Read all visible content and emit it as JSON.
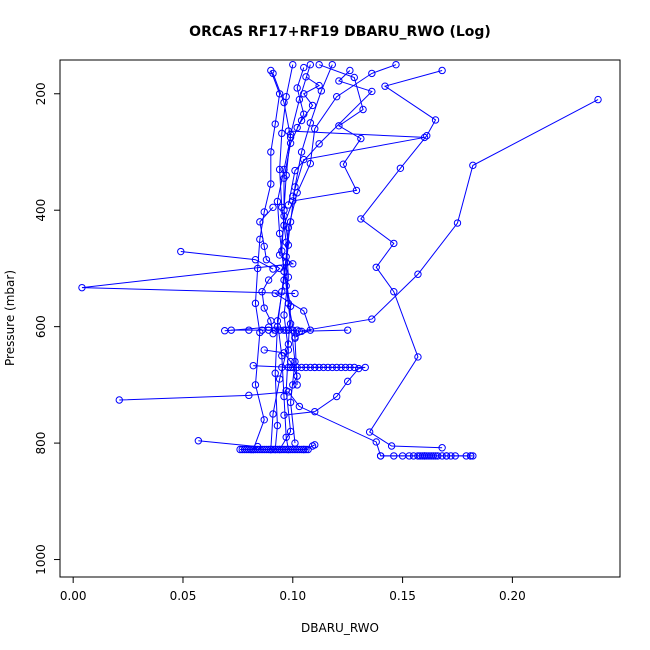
{
  "chart_data": {
    "type": "scatter",
    "title": "ORCAS RF17+RF19 DBARU_RWO (Log)",
    "xlabel": "DBARU_RWO",
    "ylabel": "Pressure (mbar)",
    "xlim": [
      -0.006,
      0.249
    ],
    "ylim": [
      1030,
      142
    ],
    "y_reversed": true,
    "x_ticks": [
      "0.00",
      "0.05",
      "0.10",
      "0.15",
      "0.20"
    ],
    "x_tick_values": [
      0.0,
      0.05,
      0.1,
      0.15,
      0.2
    ],
    "y_ticks": [
      "200",
      "400",
      "600",
      "800",
      "1000"
    ],
    "y_tick_values": [
      200,
      400,
      600,
      800,
      1000
    ],
    "grid": false,
    "series_color": "#0000ff",
    "series": [
      {
        "values": [
          [
            0.168,
            160
          ],
          [
            0.142,
            187
          ],
          [
            0.165,
            245
          ],
          [
            0.161,
            272
          ],
          [
            0.149,
            328
          ],
          [
            0.131,
            415
          ],
          [
            0.146,
            457
          ],
          [
            0.138,
            498
          ],
          [
            0.146,
            540
          ],
          [
            0.157,
            652
          ],
          [
            0.135,
            781
          ],
          [
            0.145,
            805
          ],
          [
            0.168,
            808
          ]
        ]
      },
      {
        "values": [
          [
            0.239,
            210
          ],
          [
            0.182,
            323
          ],
          [
            0.175,
            422
          ],
          [
            0.157,
            510
          ],
          [
            0.136,
            587
          ],
          [
            0.103,
            608
          ]
        ]
      },
      {
        "values": [
          [
            0.112,
            150
          ],
          [
            0.128,
            172
          ],
          [
            0.132,
            227
          ],
          [
            0.121,
            255
          ],
          [
            0.131,
            277
          ],
          [
            0.123,
            321
          ],
          [
            0.129,
            366
          ],
          [
            0.1,
            384
          ],
          [
            0.096,
            426
          ],
          [
            0.094,
            477
          ],
          [
            0.1,
            492
          ],
          [
            0.004,
            533
          ],
          [
            0.101,
            543
          ]
        ]
      },
      {
        "values": [
          [
            0.049,
            471
          ],
          [
            0.083,
            485
          ],
          [
            0.091,
            501
          ]
        ]
      },
      {
        "values": [
          [
            0.021,
            726
          ],
          [
            0.08,
            718
          ],
          [
            0.098,
            712
          ],
          [
            0.103,
            737
          ],
          [
            0.138,
            798
          ],
          [
            0.14,
            822
          ],
          [
            0.16,
            822
          ],
          [
            0.17,
            822
          ],
          [
            0.181,
            822
          ]
        ]
      },
      {
        "values": [
          [
            0.057,
            796
          ],
          [
            0.084,
            806
          ],
          [
            0.081,
            811
          ],
          [
            0.09,
            811
          ],
          [
            0.105,
            811
          ],
          [
            0.109,
            805
          ],
          [
            0.11,
            803
          ]
        ]
      },
      {
        "values": [
          [
            0.069,
            607
          ],
          [
            0.089,
            601
          ],
          [
            0.097,
            606
          ],
          [
            0.104,
            608
          ],
          [
            0.125,
            606
          ]
        ]
      },
      {
        "values": [
          [
            0.082,
            667
          ],
          [
            0.099,
            670
          ],
          [
            0.11,
            670
          ],
          [
            0.133,
            670
          ],
          [
            0.13,
            672
          ],
          [
            0.125,
            694
          ],
          [
            0.12,
            720
          ],
          [
            0.11,
            746
          ],
          [
            0.096,
            752
          ]
        ]
      },
      {
        "values": [
          [
            0.09,
            160
          ],
          [
            0.094,
            200
          ],
          [
            0.092,
            252
          ],
          [
            0.09,
            300
          ],
          [
            0.09,
            355
          ],
          [
            0.087,
            403
          ],
          [
            0.085,
            450
          ],
          [
            0.084,
            500
          ],
          [
            0.083,
            560
          ],
          [
            0.085,
            610
          ],
          [
            0.083,
            700
          ],
          [
            0.087,
            760
          ],
          [
            0.082,
            811
          ]
        ]
      },
      {
        "values": [
          [
            0.1,
            150
          ],
          [
            0.097,
            205
          ],
          [
            0.095,
            268
          ],
          [
            0.094,
            330
          ],
          [
            0.095,
            395
          ],
          [
            0.097,
            455
          ],
          [
            0.098,
            515
          ],
          [
            0.096,
            580
          ],
          [
            0.098,
            640
          ],
          [
            0.097,
            710
          ],
          [
            0.099,
            780
          ],
          [
            0.094,
            811
          ]
        ]
      },
      {
        "values": [
          [
            0.108,
            150
          ],
          [
            0.103,
            210
          ],
          [
            0.099,
            270
          ],
          [
            0.097,
            340
          ],
          [
            0.096,
            400
          ],
          [
            0.098,
            460
          ],
          [
            0.096,
            520
          ],
          [
            0.093,
            590
          ],
          [
            0.095,
            650
          ],
          [
            0.096,
            720
          ],
          [
            0.097,
            790
          ],
          [
            0.098,
            811
          ]
        ]
      },
      {
        "values": [
          [
            0.118,
            150
          ],
          [
            0.113,
            195
          ],
          [
            0.108,
            250
          ],
          [
            0.104,
            300
          ],
          [
            0.101,
            360
          ],
          [
            0.099,
            420
          ],
          [
            0.097,
            480
          ],
          [
            0.095,
            540
          ],
          [
            0.093,
            600
          ],
          [
            0.092,
            680
          ],
          [
            0.093,
            770
          ],
          [
            0.092,
            811
          ]
        ]
      },
      {
        "values": [
          [
            0.091,
            165
          ],
          [
            0.096,
            215
          ],
          [
            0.099,
            275
          ],
          [
            0.096,
            330
          ],
          [
            0.093,
            385
          ],
          [
            0.094,
            440
          ],
          [
            0.096,
            505
          ],
          [
            0.099,
            565
          ],
          [
            0.098,
            630
          ],
          [
            0.094,
            690
          ],
          [
            0.091,
            750
          ],
          [
            0.09,
            811
          ]
        ]
      },
      {
        "values": [
          [
            0.105,
            155
          ],
          [
            0.102,
            190
          ],
          [
            0.105,
            235
          ],
          [
            0.099,
            285
          ],
          [
            0.096,
            345
          ],
          [
            0.096,
            410
          ],
          [
            0.095,
            470
          ],
          [
            0.097,
            530
          ],
          [
            0.099,
            595
          ],
          [
            0.101,
            660
          ],
          [
            0.099,
            730
          ],
          [
            0.101,
            800
          ]
        ]
      },
      {
        "values": [
          [
            0.126,
            160
          ],
          [
            0.121,
            178
          ],
          [
            0.136,
            196
          ],
          [
            0.112,
            286
          ],
          [
            0.101,
            332
          ],
          [
            0.098,
            391
          ]
        ]
      },
      {
        "values": [
          [
            0.106,
            171
          ],
          [
            0.112,
            186
          ],
          [
            0.105,
            200
          ],
          [
            0.109,
            220
          ],
          [
            0.104,
            246
          ],
          [
            0.102,
            258
          ]
        ]
      },
      {
        "values": [
          [
            0.098,
            264
          ],
          [
            0.16,
            275
          ],
          [
            0.105,
            313
          ],
          [
            0.1,
            376
          ]
        ]
      },
      {
        "values": [
          [
            0.092,
            543
          ],
          [
            0.105,
            573
          ],
          [
            0.108,
            606
          ],
          [
            0.101,
            618
          ]
        ]
      },
      {
        "values": [
          [
            0.087,
            640
          ],
          [
            0.096,
            645
          ],
          [
            0.099,
            660
          ],
          [
            0.102,
            685
          ],
          [
            0.1,
            700
          ]
        ]
      },
      {
        "values": [
          [
            0.091,
            395
          ],
          [
            0.085,
            420
          ],
          [
            0.087,
            462
          ],
          [
            0.088,
            485
          ],
          [
            0.094,
            500
          ],
          [
            0.089,
            520
          ],
          [
            0.086,
            540
          ],
          [
            0.087,
            568
          ],
          [
            0.09,
            590
          ],
          [
            0.091,
            612
          ]
        ]
      },
      {
        "values": [
          [
            0.147,
            150
          ],
          [
            0.136,
            165
          ],
          [
            0.12,
            205
          ],
          [
            0.11,
            260
          ],
          [
            0.108,
            320
          ],
          [
            0.102,
            370
          ],
          [
            0.098,
            430
          ],
          [
            0.097,
            490
          ],
          [
            0.098,
            560
          ],
          [
            0.101,
            620
          ],
          [
            0.102,
            700
          ]
        ]
      }
    ],
    "clusters": [
      {
        "y": 811,
        "x": [
          0.076,
          0.077,
          0.078,
          0.079,
          0.08,
          0.081,
          0.082,
          0.083,
          0.084,
          0.085,
          0.086,
          0.087,
          0.088,
          0.089,
          0.09,
          0.091,
          0.092,
          0.093,
          0.094,
          0.095,
          0.096,
          0.097,
          0.098,
          0.099,
          0.1,
          0.101,
          0.102,
          0.103,
          0.104,
          0.105,
          0.106,
          0.107
        ]
      },
      {
        "y": 822,
        "x": [
          0.14,
          0.146,
          0.15,
          0.153,
          0.155,
          0.157,
          0.158,
          0.159,
          0.16,
          0.161,
          0.162,
          0.163,
          0.164,
          0.165,
          0.166,
          0.168,
          0.17,
          0.172,
          0.174,
          0.179,
          0.181,
          0.182
        ]
      },
      {
        "y": 670,
        "x": [
          0.095,
          0.098,
          0.1,
          0.102,
          0.104,
          0.106,
          0.108,
          0.11,
          0.112,
          0.114,
          0.116,
          0.118,
          0.12,
          0.122,
          0.124,
          0.126,
          0.128
        ]
      },
      {
        "y": 606,
        "x": [
          0.072,
          0.08,
          0.086,
          0.089,
          0.092,
          0.094,
          0.096,
          0.098,
          0.1,
          0.102
        ]
      }
    ]
  }
}
